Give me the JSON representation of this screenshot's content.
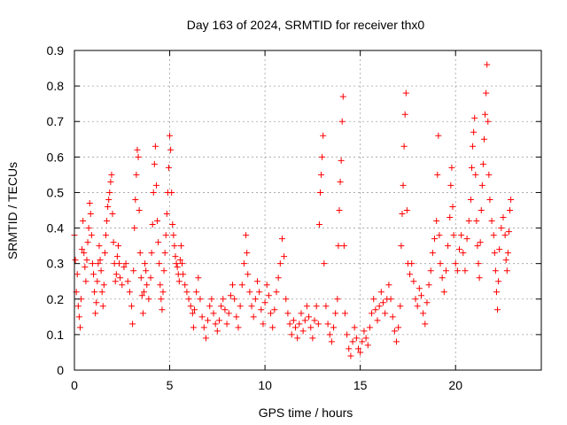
{
  "chart_data": {
    "type": "scatter",
    "title": "Day 163 of 2024, SRMTID for receiver thx0",
    "xlabel": "GPS time / hours",
    "ylabel": "SRMTID / TECUs",
    "xlim": [
      0,
      24.5
    ],
    "ylim": [
      0,
      0.9
    ],
    "grid": true,
    "marker": "+",
    "marker_color": "#ff0000",
    "x_ticks": [
      0,
      5,
      10,
      15,
      20
    ],
    "x_tick_labels": [
      "0",
      "5",
      "10",
      "15",
      "20"
    ],
    "y_ticks": [
      0,
      0.1,
      0.2,
      0.3,
      0.4,
      0.5,
      0.6,
      0.7,
      0.8,
      0.9
    ],
    "y_tick_labels": [
      "0",
      "0.1",
      "0.2",
      "0.3",
      "0.4",
      "0.5",
      "0.6",
      "0.7",
      "0.8",
      "0.9"
    ],
    "series": [
      {
        "name": "thx0",
        "points": [
          [
            0.0,
            0.38
          ],
          [
            0.05,
            0.31
          ],
          [
            0.1,
            0.22
          ],
          [
            0.15,
            0.27
          ],
          [
            0.2,
            0.18
          ],
          [
            0.25,
            0.15
          ],
          [
            0.3,
            0.12
          ],
          [
            0.35,
            0.2
          ],
          [
            0.4,
            0.34
          ],
          [
            0.45,
            0.42
          ],
          [
            0.5,
            0.33
          ],
          [
            0.55,
            0.29
          ],
          [
            0.6,
            0.25
          ],
          [
            0.65,
            0.31
          ],
          [
            0.7,
            0.36
          ],
          [
            0.75,
            0.4
          ],
          [
            0.8,
            0.47
          ],
          [
            0.85,
            0.44
          ],
          [
            0.9,
            0.38
          ],
          [
            0.95,
            0.3
          ],
          [
            1.0,
            0.27
          ],
          [
            1.05,
            0.22
          ],
          [
            1.1,
            0.16
          ],
          [
            1.15,
            0.19
          ],
          [
            1.2,
            0.25
          ],
          [
            1.25,
            0.3
          ],
          [
            1.3,
            0.35
          ],
          [
            1.35,
            0.31
          ],
          [
            1.4,
            0.28
          ],
          [
            1.45,
            0.22
          ],
          [
            1.5,
            0.18
          ],
          [
            1.55,
            0.24
          ],
          [
            1.6,
            0.33
          ],
          [
            1.65,
            0.38
          ],
          [
            1.7,
            0.42
          ],
          [
            1.75,
            0.46
          ],
          [
            1.8,
            0.48
          ],
          [
            1.85,
            0.5
          ],
          [
            1.9,
            0.53
          ],
          [
            1.95,
            0.55
          ],
          [
            2.0,
            0.44
          ],
          [
            2.05,
            0.36
          ],
          [
            2.1,
            0.3
          ],
          [
            2.15,
            0.25
          ],
          [
            2.2,
            0.27
          ],
          [
            2.25,
            0.32
          ],
          [
            2.3,
            0.35
          ],
          [
            2.35,
            0.3
          ],
          [
            2.4,
            0.26
          ],
          [
            2.5,
            0.24
          ],
          [
            2.6,
            0.29
          ],
          [
            2.7,
            0.3
          ],
          [
            2.8,
            0.25
          ],
          [
            2.9,
            0.22
          ],
          [
            3.0,
            0.18
          ],
          [
            3.05,
            0.13
          ],
          [
            3.1,
            0.28
          ],
          [
            3.15,
            0.4
          ],
          [
            3.2,
            0.48
          ],
          [
            3.25,
            0.55
          ],
          [
            3.3,
            0.62
          ],
          [
            3.35,
            0.6
          ],
          [
            3.4,
            0.45
          ],
          [
            3.45,
            0.33
          ],
          [
            3.5,
            0.26
          ],
          [
            3.55,
            0.21
          ],
          [
            3.6,
            0.16
          ],
          [
            3.65,
            0.22
          ],
          [
            3.7,
            0.3
          ],
          [
            3.75,
            0.28
          ],
          [
            3.8,
            0.24
          ],
          [
            3.9,
            0.2
          ],
          [
            4.0,
            0.26
          ],
          [
            4.05,
            0.33
          ],
          [
            4.1,
            0.41
          ],
          [
            4.15,
            0.5
          ],
          [
            4.2,
            0.58
          ],
          [
            4.25,
            0.63
          ],
          [
            4.3,
            0.52
          ],
          [
            4.35,
            0.42
          ],
          [
            4.4,
            0.36
          ],
          [
            4.45,
            0.3
          ],
          [
            4.5,
            0.24
          ],
          [
            4.55,
            0.2
          ],
          [
            4.6,
            0.17
          ],
          [
            4.65,
            0.22
          ],
          [
            4.7,
            0.28
          ],
          [
            4.75,
            0.33
          ],
          [
            4.8,
            0.38
          ],
          [
            4.85,
            0.44
          ],
          [
            4.9,
            0.5
          ],
          [
            4.95,
            0.57
          ],
          [
            5.0,
            0.66
          ],
          [
            5.05,
            0.62
          ],
          [
            5.1,
            0.5
          ],
          [
            5.15,
            0.41
          ],
          [
            5.2,
            0.38
          ],
          [
            5.25,
            0.35
          ],
          [
            5.3,
            0.32
          ],
          [
            5.35,
            0.3
          ],
          [
            5.4,
            0.29
          ],
          [
            5.45,
            0.27
          ],
          [
            5.5,
            0.25
          ],
          [
            5.55,
            0.31
          ],
          [
            5.6,
            0.35
          ],
          [
            5.65,
            0.3
          ],
          [
            5.7,
            0.27
          ],
          [
            5.8,
            0.24
          ],
          [
            5.9,
            0.22
          ],
          [
            6.0,
            0.2
          ],
          [
            6.1,
            0.18
          ],
          [
            6.2,
            0.16
          ],
          [
            6.25,
            0.12
          ],
          [
            6.3,
            0.17
          ],
          [
            6.4,
            0.22
          ],
          [
            6.5,
            0.26
          ],
          [
            6.6,
            0.2
          ],
          [
            6.7,
            0.15
          ],
          [
            6.8,
            0.12
          ],
          [
            6.9,
            0.09
          ],
          [
            7.0,
            0.14
          ],
          [
            7.1,
            0.18
          ],
          [
            7.2,
            0.2
          ],
          [
            7.3,
            0.16
          ],
          [
            7.4,
            0.13
          ],
          [
            7.5,
            0.11
          ],
          [
            7.6,
            0.14
          ],
          [
            7.7,
            0.18
          ],
          [
            7.8,
            0.2
          ],
          [
            7.9,
            0.17
          ],
          [
            8.0,
            0.13
          ],
          [
            8.1,
            0.16
          ],
          [
            8.2,
            0.21
          ],
          [
            8.3,
            0.24
          ],
          [
            8.4,
            0.2
          ],
          [
            8.5,
            0.15
          ],
          [
            8.6,
            0.12
          ],
          [
            8.7,
            0.18
          ],
          [
            8.8,
            0.24
          ],
          [
            8.9,
            0.3
          ],
          [
            9.0,
            0.38
          ],
          [
            9.05,
            0.33
          ],
          [
            9.1,
            0.27
          ],
          [
            9.2,
            0.22
          ],
          [
            9.3,
            0.18
          ],
          [
            9.4,
            0.15
          ],
          [
            9.5,
            0.2
          ],
          [
            9.6,
            0.25
          ],
          [
            9.7,
            0.22
          ],
          [
            9.8,
            0.17
          ],
          [
            9.9,
            0.13
          ],
          [
            10.0,
            0.19
          ],
          [
            10.1,
            0.24
          ],
          [
            10.2,
            0.21
          ],
          [
            10.3,
            0.16
          ],
          [
            10.4,
            0.12
          ],
          [
            10.5,
            0.17
          ],
          [
            10.6,
            0.22
          ],
          [
            10.7,
            0.26
          ],
          [
            10.8,
            0.3
          ],
          [
            10.9,
            0.37
          ],
          [
            11.0,
            0.32
          ],
          [
            11.1,
            0.2
          ],
          [
            11.2,
            0.16
          ],
          [
            11.3,
            0.13
          ],
          [
            11.4,
            0.1
          ],
          [
            11.5,
            0.14
          ],
          [
            11.6,
            0.12
          ],
          [
            11.7,
            0.09
          ],
          [
            11.8,
            0.13
          ],
          [
            11.9,
            0.16
          ],
          [
            12.0,
            0.11
          ],
          [
            12.1,
            0.14
          ],
          [
            12.2,
            0.18
          ],
          [
            12.3,
            0.15
          ],
          [
            12.4,
            0.12
          ],
          [
            12.5,
            0.09
          ],
          [
            12.6,
            0.14
          ],
          [
            12.7,
            0.18
          ],
          [
            12.8,
            0.13
          ],
          [
            12.85,
            0.41
          ],
          [
            12.9,
            0.5
          ],
          [
            12.95,
            0.55
          ],
          [
            13.0,
            0.6
          ],
          [
            13.05,
            0.66
          ],
          [
            13.1,
            0.3
          ],
          [
            13.2,
            0.18
          ],
          [
            13.3,
            0.13
          ],
          [
            13.4,
            0.1
          ],
          [
            13.5,
            0.08
          ],
          [
            13.6,
            0.12
          ],
          [
            13.7,
            0.16
          ],
          [
            13.8,
            0.2
          ],
          [
            13.85,
            0.35
          ],
          [
            13.9,
            0.45
          ],
          [
            13.95,
            0.53
          ],
          [
            14.0,
            0.59
          ],
          [
            14.05,
            0.7
          ],
          [
            14.1,
            0.77
          ],
          [
            14.15,
            0.35
          ],
          [
            14.2,
            0.16
          ],
          [
            14.3,
            0.1
          ],
          [
            14.4,
            0.06
          ],
          [
            14.5,
            0.04
          ],
          [
            14.6,
            0.08
          ],
          [
            14.7,
            0.12
          ],
          [
            14.8,
            0.09
          ],
          [
            14.9,
            0.06
          ],
          [
            15.0,
            0.05
          ],
          [
            15.1,
            0.08
          ],
          [
            15.2,
            0.11
          ],
          [
            15.3,
            0.09
          ],
          [
            15.4,
            0.07
          ],
          [
            15.5,
            0.12
          ],
          [
            15.6,
            0.16
          ],
          [
            15.7,
            0.2
          ],
          [
            15.8,
            0.17
          ],
          [
            15.9,
            0.14
          ],
          [
            16.0,
            0.18
          ],
          [
            16.1,
            0.22
          ],
          [
            16.2,
            0.19
          ],
          [
            16.3,
            0.16
          ],
          [
            16.4,
            0.2
          ],
          [
            16.5,
            0.24
          ],
          [
            16.6,
            0.2
          ],
          [
            16.7,
            0.15
          ],
          [
            16.8,
            0.11
          ],
          [
            16.9,
            0.08
          ],
          [
            17.0,
            0.12
          ],
          [
            17.1,
            0.18
          ],
          [
            17.15,
            0.35
          ],
          [
            17.2,
            0.44
          ],
          [
            17.25,
            0.52
          ],
          [
            17.3,
            0.63
          ],
          [
            17.35,
            0.72
          ],
          [
            17.4,
            0.78
          ],
          [
            17.45,
            0.45
          ],
          [
            17.5,
            0.3
          ],
          [
            17.6,
            0.27
          ],
          [
            17.7,
            0.3
          ],
          [
            17.8,
            0.25
          ],
          [
            17.9,
            0.2
          ],
          [
            18.0,
            0.18
          ],
          [
            18.1,
            0.23
          ],
          [
            18.2,
            0.21
          ],
          [
            18.3,
            0.16
          ],
          [
            18.4,
            0.13
          ],
          [
            18.5,
            0.19
          ],
          [
            18.6,
            0.24
          ],
          [
            18.7,
            0.28
          ],
          [
            18.8,
            0.33
          ],
          [
            18.9,
            0.37
          ],
          [
            19.0,
            0.42
          ],
          [
            19.05,
            0.55
          ],
          [
            19.1,
            0.66
          ],
          [
            19.15,
            0.38
          ],
          [
            19.2,
            0.3
          ],
          [
            19.3,
            0.26
          ],
          [
            19.4,
            0.22
          ],
          [
            19.5,
            0.28
          ],
          [
            19.6,
            0.35
          ],
          [
            19.7,
            0.43
          ],
          [
            19.75,
            0.52
          ],
          [
            19.8,
            0.57
          ],
          [
            19.85,
            0.46
          ],
          [
            19.9,
            0.38
          ],
          [
            20.0,
            0.3
          ],
          [
            20.1,
            0.28
          ],
          [
            20.2,
            0.34
          ],
          [
            20.3,
            0.38
          ],
          [
            20.4,
            0.33
          ],
          [
            20.5,
            0.28
          ],
          [
            20.6,
            0.37
          ],
          [
            20.7,
            0.42
          ],
          [
            20.8,
            0.48
          ],
          [
            20.85,
            0.57
          ],
          [
            20.9,
            0.63
          ],
          [
            20.95,
            0.67
          ],
          [
            21.0,
            0.71
          ],
          [
            21.05,
            0.55
          ],
          [
            21.1,
            0.42
          ],
          [
            21.15,
            0.35
          ],
          [
            21.2,
            0.3
          ],
          [
            21.25,
            0.26
          ],
          [
            21.3,
            0.36
          ],
          [
            21.35,
            0.45
          ],
          [
            21.4,
            0.52
          ],
          [
            21.45,
            0.58
          ],
          [
            21.5,
            0.65
          ],
          [
            21.55,
            0.72
          ],
          [
            21.6,
            0.78
          ],
          [
            21.65,
            0.86
          ],
          [
            21.7,
            0.7
          ],
          [
            21.75,
            0.55
          ],
          [
            21.8,
            0.48
          ],
          [
            21.9,
            0.42
          ],
          [
            22.0,
            0.38
          ],
          [
            22.05,
            0.33
          ],
          [
            22.1,
            0.28
          ],
          [
            22.15,
            0.22
          ],
          [
            22.2,
            0.17
          ],
          [
            22.25,
            0.25
          ],
          [
            22.3,
            0.34
          ],
          [
            22.4,
            0.4
          ],
          [
            22.5,
            0.43
          ],
          [
            22.6,
            0.38
          ],
          [
            22.65,
            0.31
          ],
          [
            22.7,
            0.28
          ],
          [
            22.75,
            0.33
          ],
          [
            22.8,
            0.39
          ],
          [
            22.85,
            0.45
          ],
          [
            22.9,
            0.48
          ]
        ]
      }
    ]
  }
}
